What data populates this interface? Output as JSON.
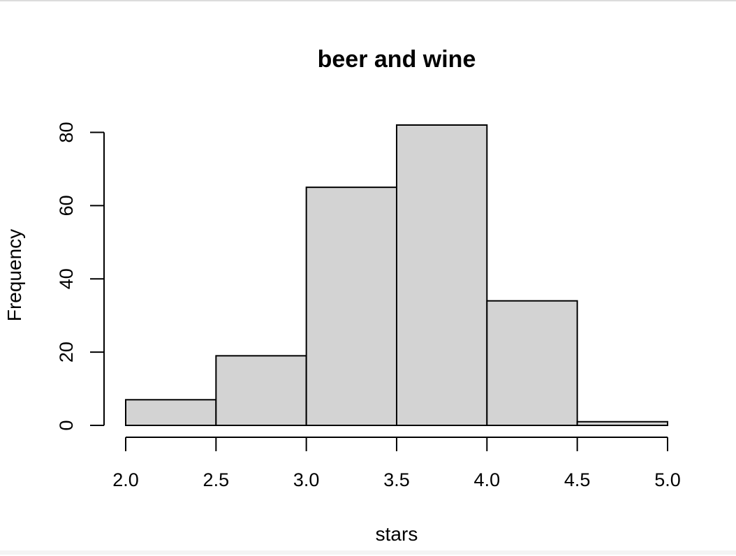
{
  "chart_data": {
    "type": "bar",
    "title": "beer and wine",
    "xlabel": "stars",
    "ylabel": "Frequency",
    "bins": [
      {
        "from": 2.0,
        "to": 2.5,
        "count": 7
      },
      {
        "from": 2.5,
        "to": 3.0,
        "count": 19
      },
      {
        "from": 3.0,
        "to": 3.5,
        "count": 65
      },
      {
        "from": 3.5,
        "to": 4.0,
        "count": 82
      },
      {
        "from": 4.0,
        "to": 4.5,
        "count": 34
      },
      {
        "from": 4.5,
        "to": 5.0,
        "count": 1
      }
    ],
    "xlim": [
      2.0,
      5.0
    ],
    "ylim": [
      0,
      82
    ],
    "x_ticks": [
      "2.0",
      "2.5",
      "3.0",
      "3.5",
      "4.0",
      "4.5",
      "5.0"
    ],
    "y_ticks": [
      "0",
      "20",
      "40",
      "60",
      "80"
    ],
    "bar_fill": "#d3d3d3",
    "bar_stroke": "#000000",
    "grid": false,
    "legend": "none"
  }
}
